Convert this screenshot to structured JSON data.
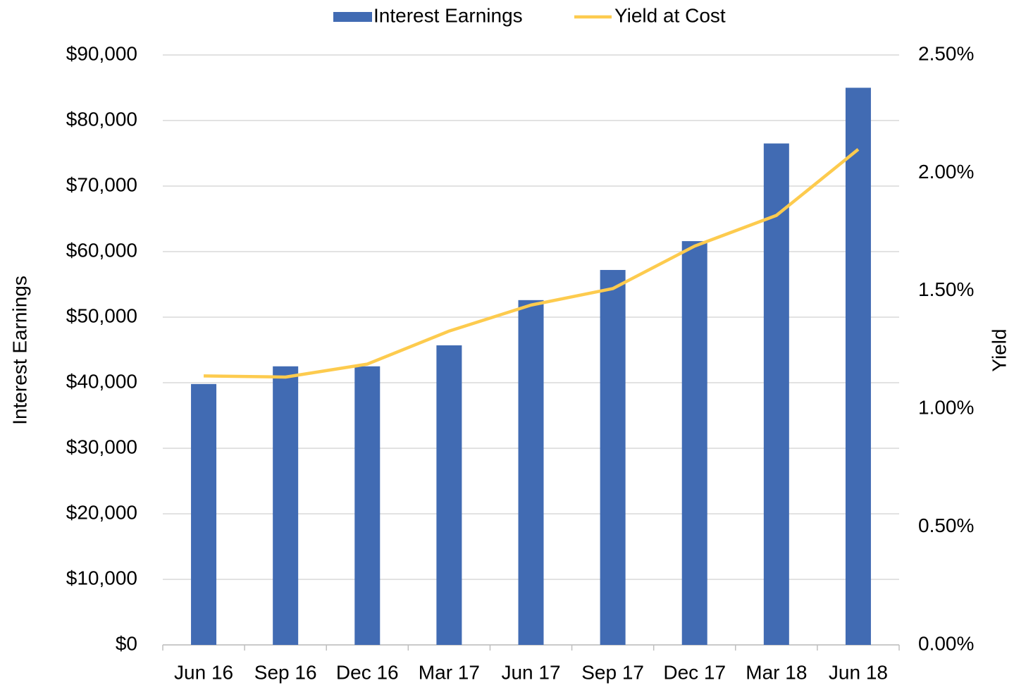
{
  "chart_data": {
    "type": "bar_line",
    "categories": [
      "Jun 16",
      "Sep 16",
      "Dec 16",
      "Mar 17",
      "Jun 17",
      "Sep 17",
      "Dec 17",
      "Mar 18",
      "Jun 18"
    ],
    "series": [
      {
        "name": "Interest Earnings",
        "type": "bar",
        "color": "#416bb3",
        "values": [
          39800,
          42500,
          42500,
          45700,
          52600,
          57200,
          61600,
          76500,
          85000
        ]
      },
      {
        "name": "Yield at Cost",
        "type": "line",
        "axis": "y2",
        "color": "#fdcb4e",
        "values": [
          1.14,
          1.135,
          1.19,
          1.33,
          1.44,
          1.51,
          1.69,
          1.82,
          2.1
        ]
      }
    ],
    "ylabel": "Interest Earnings",
    "y2label": "Yield",
    "ylim": [
      0,
      90000
    ],
    "yticks": [
      {
        "value": 0,
        "label": "$0"
      },
      {
        "value": 10000,
        "label": "$10,000"
      },
      {
        "value": 20000,
        "label": "$20,000"
      },
      {
        "value": 30000,
        "label": "$30,000"
      },
      {
        "value": 40000,
        "label": "$40,000"
      },
      {
        "value": 50000,
        "label": "$50,000"
      },
      {
        "value": 60000,
        "label": "$60,000"
      },
      {
        "value": 70000,
        "label": "$70,000"
      },
      {
        "value": 80000,
        "label": "$80,000"
      },
      {
        "value": 90000,
        "label": "$90,000"
      }
    ],
    "y2lim": [
      0,
      2.5
    ],
    "y2ticks": [
      {
        "value": 0,
        "label": "0.00%"
      },
      {
        "value": 0.5,
        "label": "0.50%"
      },
      {
        "value": 1,
        "label": "1.00%"
      },
      {
        "value": 1.5,
        "label": "1.50%"
      },
      {
        "value": 2,
        "label": "2.00%"
      },
      {
        "value": 2.5,
        "label": "2.50%"
      }
    ],
    "grid": true,
    "legend": "top"
  }
}
